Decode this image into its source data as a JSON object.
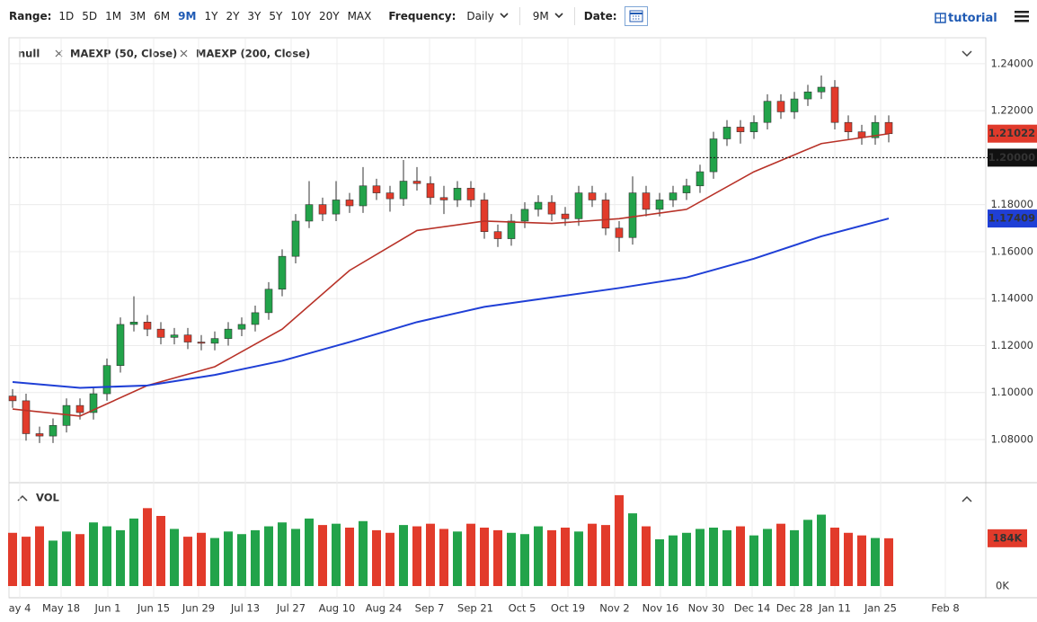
{
  "toolbar": {
    "range_label": "Range:",
    "ranges": [
      "1D",
      "5D",
      "1M",
      "3M",
      "6M",
      "9M",
      "1Y",
      "2Y",
      "3Y",
      "5Y",
      "10Y",
      "20Y",
      "MAX"
    ],
    "frequency_label": "Frequency:",
    "frequency": "Daily",
    "period": "9M",
    "date_label": "Date:",
    "tutorial": "tutorial"
  },
  "chart_data": {
    "type": "candlestick",
    "legend": [
      "null",
      "MAEXP (50, Close)",
      "MAEXP (200, Close)"
    ],
    "up_color": "#22a34a",
    "down_color": "#e23b2b",
    "candles": [
      [
        1.0985,
        1.1015,
        1.0935,
        1.0965
      ],
      [
        1.0965,
        1.0995,
        1.0795,
        1.0825
      ],
      [
        1.0825,
        1.0855,
        1.0785,
        1.0815
      ],
      [
        1.0815,
        1.089,
        1.0785,
        1.086
      ],
      [
        1.086,
        1.0975,
        1.083,
        1.0945
      ],
      [
        1.0945,
        1.0975,
        1.0885,
        1.0915
      ],
      [
        1.0915,
        1.1025,
        1.0885,
        1.0995
      ],
      [
        1.0995,
        1.1145,
        1.0965,
        1.1115
      ],
      [
        1.1115,
        1.132,
        1.1085,
        1.129
      ],
      [
        1.129,
        1.141,
        1.126,
        1.13
      ],
      [
        1.13,
        1.133,
        1.124,
        1.127
      ],
      [
        1.127,
        1.13,
        1.1205,
        1.1235
      ],
      [
        1.1235,
        1.1275,
        1.1205,
        1.1245
      ],
      [
        1.1245,
        1.1275,
        1.1185,
        1.1215
      ],
      [
        1.1215,
        1.1245,
        1.118,
        1.121
      ],
      [
        1.121,
        1.126,
        1.118,
        1.123
      ],
      [
        1.123,
        1.13,
        1.12,
        1.127
      ],
      [
        1.127,
        1.132,
        1.124,
        1.129
      ],
      [
        1.129,
        1.137,
        1.126,
        1.134
      ],
      [
        1.134,
        1.147,
        1.131,
        1.144
      ],
      [
        1.144,
        1.161,
        1.141,
        1.158
      ],
      [
        1.158,
        1.176,
        1.155,
        1.173
      ],
      [
        1.173,
        1.19,
        1.17,
        1.18
      ],
      [
        1.18,
        1.183,
        1.173,
        1.176
      ],
      [
        1.176,
        1.19,
        1.173,
        1.182
      ],
      [
        1.182,
        1.185,
        1.1765,
        1.1795
      ],
      [
        1.1795,
        1.196,
        1.1765,
        1.188
      ],
      [
        1.188,
        1.191,
        1.182,
        1.185
      ],
      [
        1.185,
        1.188,
        1.177,
        1.1825
      ],
      [
        1.1825,
        1.199,
        1.1795,
        1.19
      ],
      [
        1.19,
        1.196,
        1.186,
        1.189
      ],
      [
        1.189,
        1.192,
        1.18,
        1.183
      ],
      [
        1.183,
        1.188,
        1.176,
        1.182
      ],
      [
        1.182,
        1.19,
        1.179,
        1.187
      ],
      [
        1.187,
        1.19,
        1.179,
        1.182
      ],
      [
        1.182,
        1.185,
        1.1655,
        1.1685
      ],
      [
        1.1685,
        1.1715,
        1.162,
        1.1655
      ],
      [
        1.1655,
        1.176,
        1.1625,
        1.173
      ],
      [
        1.173,
        1.181,
        1.17,
        1.178
      ],
      [
        1.178,
        1.184,
        1.175,
        1.181
      ],
      [
        1.181,
        1.184,
        1.173,
        1.176
      ],
      [
        1.176,
        1.179,
        1.171,
        1.174
      ],
      [
        1.174,
        1.188,
        1.171,
        1.185
      ],
      [
        1.185,
        1.188,
        1.179,
        1.182
      ],
      [
        1.182,
        1.185,
        1.167,
        1.17
      ],
      [
        1.17,
        1.173,
        1.16,
        1.166
      ],
      [
        1.166,
        1.192,
        1.163,
        1.185
      ],
      [
        1.185,
        1.188,
        1.175,
        1.178
      ],
      [
        1.178,
        1.185,
        1.175,
        1.182
      ],
      [
        1.182,
        1.188,
        1.179,
        1.185
      ],
      [
        1.185,
        1.191,
        1.182,
        1.188
      ],
      [
        1.188,
        1.197,
        1.185,
        1.194
      ],
      [
        1.194,
        1.211,
        1.191,
        1.208
      ],
      [
        1.208,
        1.216,
        1.205,
        1.213
      ],
      [
        1.213,
        1.216,
        1.206,
        1.211
      ],
      [
        1.211,
        1.218,
        1.208,
        1.215
      ],
      [
        1.215,
        1.227,
        1.212,
        1.224
      ],
      [
        1.224,
        1.227,
        1.2165,
        1.2195
      ],
      [
        1.2195,
        1.228,
        1.2165,
        1.225
      ],
      [
        1.225,
        1.231,
        1.222,
        1.228
      ],
      [
        1.228,
        1.235,
        1.225,
        1.23
      ],
      [
        1.23,
        1.233,
        1.212,
        1.215
      ],
      [
        1.215,
        1.218,
        1.208,
        1.211
      ],
      [
        1.211,
        1.214,
        1.2055,
        1.2085
      ],
      [
        1.2085,
        1.218,
        1.2055,
        1.215
      ],
      [
        1.215,
        1.218,
        1.2065,
        1.2102
      ]
    ],
    "moving_averages": [
      {
        "name": "MAEXP (50, Close)",
        "color": "#b83228",
        "values": [
          1.093,
          1.09,
          1.103,
          1.111,
          1.127,
          1.152,
          1.169,
          1.173,
          1.172,
          1.174,
          1.178,
          1.194,
          1.206,
          1.2102
        ]
      },
      {
        "name": "MAEXP (200, Close)",
        "color": "#1f3fd6",
        "values": [
          1.1045,
          1.102,
          1.103,
          1.1075,
          1.1135,
          1.1215,
          1.13,
          1.1365,
          1.1405,
          1.1445,
          1.149,
          1.157,
          1.1665,
          1.1741
        ]
      }
    ],
    "ylim": [
      1.0624,
      1.2499
    ],
    "yticks": [
      {
        "value": 1.08,
        "label": "1.08000"
      },
      {
        "value": 1.1,
        "label": "1.10000"
      },
      {
        "value": 1.12,
        "label": "1.12000"
      },
      {
        "value": 1.14,
        "label": "1.14000"
      },
      {
        "value": 1.16,
        "label": "1.16000"
      },
      {
        "value": 1.18,
        "label": "1.18000"
      },
      {
        "value": 1.2,
        "label": "1.20000"
      },
      {
        "value": 1.22,
        "label": "1.22000"
      },
      {
        "value": 1.24,
        "label": "1.24000"
      }
    ],
    "price_labels": [
      {
        "value": 1.21022,
        "label": "1.21022",
        "color": "#e03a2b"
      },
      {
        "value": 1.2,
        "label": "1.20000",
        "color": "#111111"
      },
      {
        "value": 1.17409,
        "label": "1.17409",
        "color": "#1f3fd6"
      }
    ],
    "time_labels": [
      "ay 4",
      "May 18",
      "Jun 1",
      "Jun 15",
      "Jun 29",
      "Jul 13",
      "Jul 27",
      "Aug 10",
      "Aug 24",
      "Sep 7",
      "Sep 21",
      "Oct 5",
      "Oct 19",
      "Nov 2",
      "Nov 16",
      "Nov 30",
      "Dec 14",
      "Dec 28",
      "Jan 11",
      "Jan 25",
      "Feb 8"
    ],
    "volume": {
      "label": "VOL",
      "ylim": [
        0,
        360000
      ],
      "ticks": [
        {
          "value": 0,
          "label": "0K"
        },
        {
          "value": 184000,
          "label": "184K"
        }
      ],
      "values": [
        205000,
        190000,
        230000,
        175000,
        210000,
        200000,
        245000,
        230000,
        215000,
        260000,
        300000,
        270000,
        220000,
        190000,
        205000,
        185000,
        210000,
        200000,
        215000,
        230000,
        245000,
        220000,
        260000,
        235000,
        240000,
        225000,
        250000,
        215000,
        205000,
        235000,
        230000,
        240000,
        220000,
        210000,
        240000,
        225000,
        215000,
        205000,
        200000,
        230000,
        215000,
        225000,
        210000,
        240000,
        235000,
        350000,
        280000,
        230000,
        180000,
        195000,
        205000,
        220000,
        225000,
        215000,
        230000,
        195000,
        220000,
        240000,
        215000,
        255000,
        275000,
        225000,
        205000,
        195000,
        185000,
        184000
      ]
    }
  }
}
